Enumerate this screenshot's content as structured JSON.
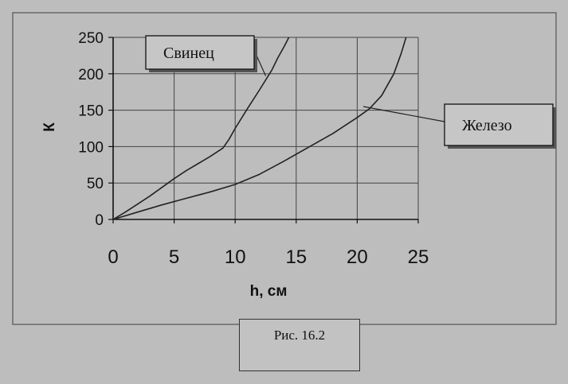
{
  "chart_data": {
    "type": "line",
    "title": "",
    "xlabel": "h, см",
    "ylabel": "К",
    "xlim": [
      0,
      25
    ],
    "ylim": [
      0,
      250
    ],
    "x_ticks": [
      "0",
      "5",
      "10",
      "15",
      "20",
      "25"
    ],
    "y_ticks": [
      "0",
      "50",
      "100",
      "150",
      "200",
      "250"
    ],
    "grid": true,
    "series": [
      {
        "name": "Свинец",
        "color": "#222222",
        "x": [
          0,
          1,
          2,
          3,
          4,
          5,
          6,
          7,
          8,
          9,
          9.5,
          10,
          11,
          12,
          13,
          13.5,
          14,
          14.4
        ],
        "y": [
          0,
          10,
          21,
          32,
          44,
          56,
          67,
          77,
          87,
          98,
          110,
          125,
          152,
          178,
          205,
          222,
          237,
          250
        ]
      },
      {
        "name": "Железо",
        "color": "#222222",
        "x": [
          0,
          2,
          4,
          6,
          8,
          10,
          11,
          12,
          14,
          16,
          18,
          20,
          21,
          22,
          23,
          23.6,
          24
        ],
        "y": [
          0,
          10,
          20,
          29,
          38,
          48,
          55,
          62,
          80,
          99,
          118,
          140,
          152,
          170,
          200,
          228,
          250
        ]
      }
    ],
    "callouts": [
      {
        "text": "Свинец",
        "series": "Свинец",
        "anchor": [
          12.5,
          197
        ]
      },
      {
        "text": "Железо",
        "series": "Железо",
        "anchor": [
          20.5,
          155
        ]
      }
    ]
  },
  "caption": "Рис. 16.2"
}
